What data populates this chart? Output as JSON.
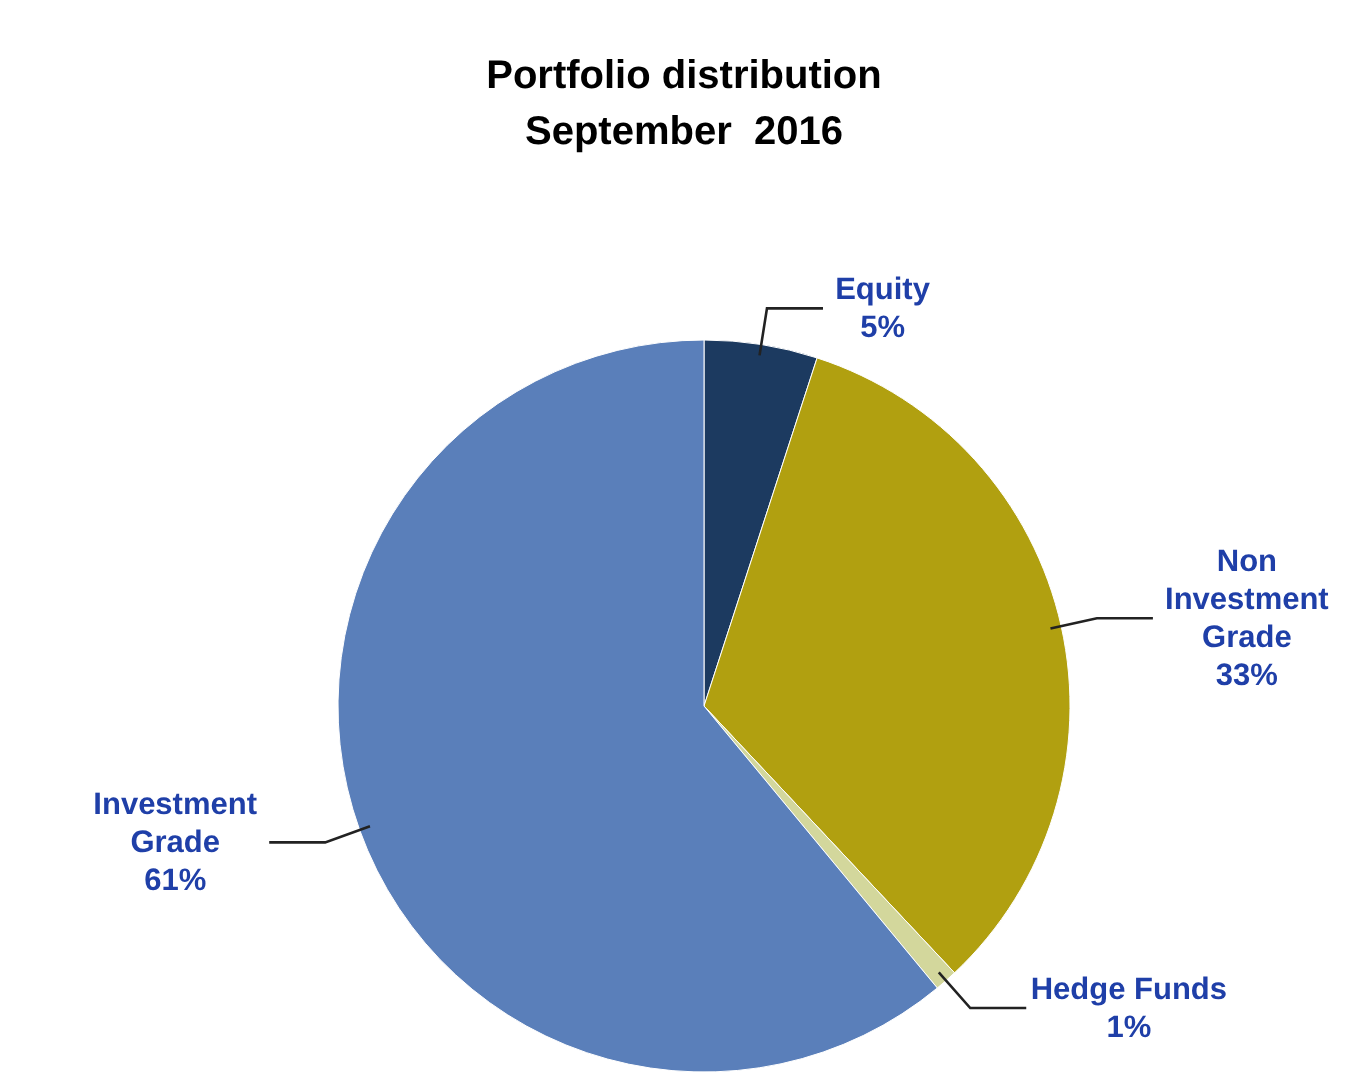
{
  "chart_data": {
    "type": "pie",
    "title": "Portfolio distribution",
    "subtitle": "September  2016",
    "categories": [
      "Equity",
      "Non Investment Grade",
      "Hedge Funds",
      "Investment Grade"
    ],
    "values": [
      5,
      33,
      1,
      61
    ],
    "value_labels": [
      "5%",
      "33%",
      "1%",
      "61%"
    ],
    "colors": [
      "#1c3a60",
      "#b1a010",
      "#d3d79c",
      "#5a7fba"
    ]
  }
}
